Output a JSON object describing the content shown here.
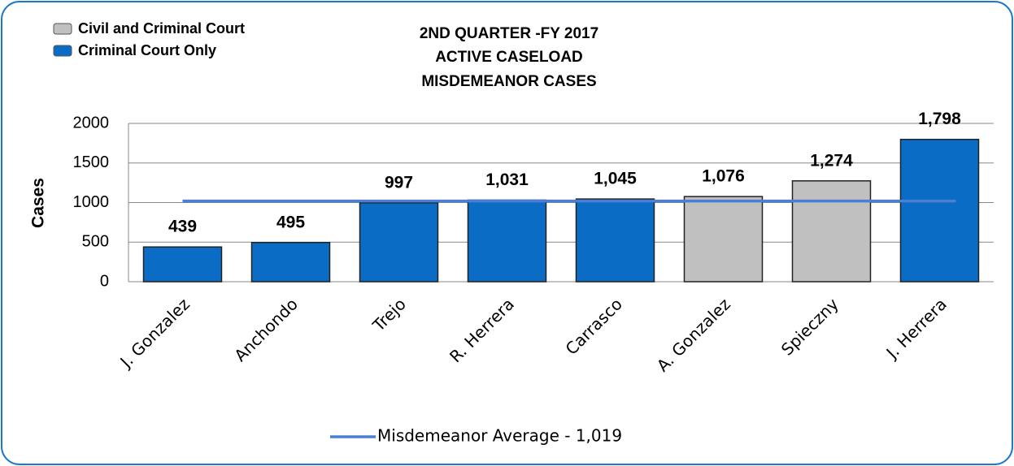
{
  "chart_data": {
    "type": "bar",
    "title": [
      "2ND QUARTER -FY 2017",
      "ACTIVE CASELOAD",
      "MISDEMEANOR CASES"
    ],
    "ylabel": "Cases",
    "categories": [
      "J. Gonzalez",
      "Anchondo",
      "Trejo",
      "R. Herrera",
      "Carrasco",
      "A. Gonzalez",
      "Spieczny",
      "J. Herrera"
    ],
    "series": [
      {
        "name": "Civil and Criminal Court",
        "color": "#c0c0c0",
        "values": [
          null,
          null,
          null,
          null,
          null,
          1076,
          1274,
          null
        ],
        "value_labels": [
          null,
          null,
          null,
          null,
          null,
          "1,076",
          "1,274",
          null
        ]
      },
      {
        "name": "Criminal Court Only",
        "color": "#0a6cc4",
        "values": [
          439,
          495,
          997,
          1031,
          1045,
          null,
          null,
          1798
        ],
        "value_labels": [
          "439",
          "495",
          "997",
          "1,031",
          "1,045",
          null,
          null,
          "1,798"
        ]
      }
    ],
    "average": {
      "name": "Misdemeanor Average - 1,019",
      "value": 1019,
      "color": "#4a7fd4"
    },
    "ylim": [
      0,
      2000
    ],
    "yticks": [
      0,
      500,
      1000,
      1500,
      2000
    ],
    "grid": true
  }
}
